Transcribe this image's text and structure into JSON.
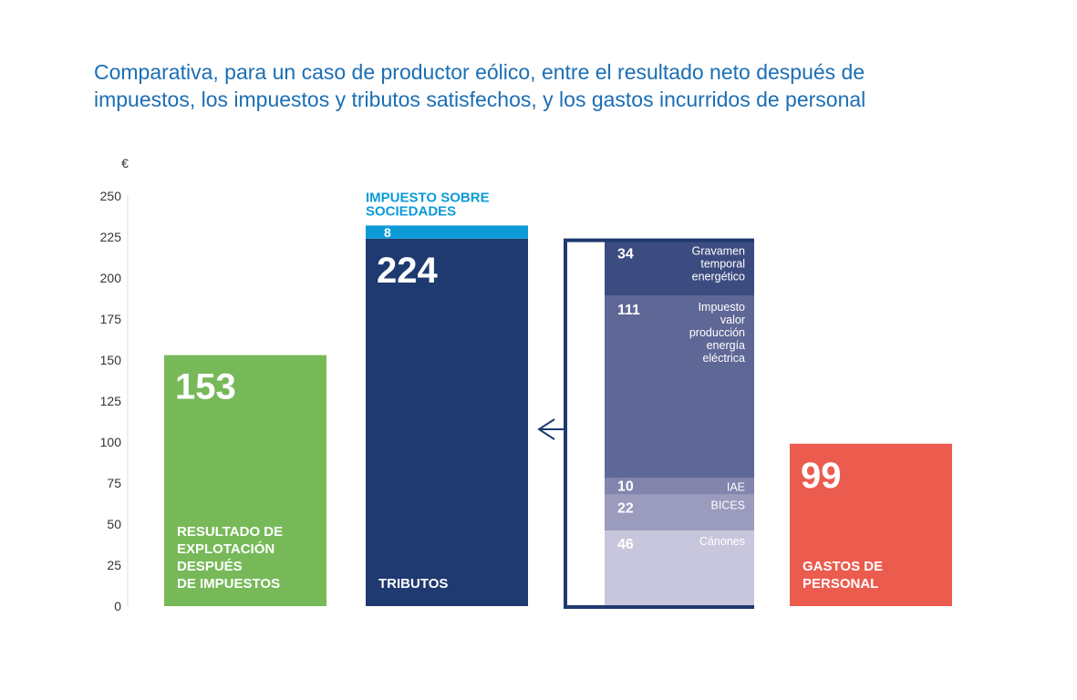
{
  "chart_data": {
    "type": "bar",
    "title": "Comparativa, para un caso de productor eólico, entre el resultado neto después de impuestos, los impuestos y tributos satisfechos, y los gastos incurridos de personal",
    "ylabel": "€",
    "ylim": [
      0,
      250
    ],
    "yticks": [
      0,
      25,
      50,
      75,
      100,
      125,
      150,
      175,
      200,
      225,
      250
    ],
    "grid": false,
    "bars": [
      {
        "label": "RESULTADO DE EXPLOTACIÓN DESPUÉS DE IMPUESTOS",
        "label_lines": [
          "RESULTADO DE",
          "EXPLOTACIÓN",
          "DESPUÉS",
          "DE IMPUESTOS"
        ],
        "value": 153,
        "color": "#77b959"
      },
      {
        "label": "TRIBUTOS",
        "label_lines": [
          "TRIBUTOS"
        ],
        "value": 224,
        "color": "#1f3a70",
        "stacked_top": {
          "label": "IMPUESTO SOBRE SOCIEDADES",
          "label_lines": [
            "IMPUESTO SOBRE",
            "SOCIEDADES"
          ],
          "value": 8,
          "color": "#0c9ad8"
        }
      },
      {
        "label": "GASTOS DE PERSONAL",
        "label_lines": [
          "GASTOS DE",
          "PERSONAL"
        ],
        "value": 99,
        "color": "#eb5c4f"
      }
    ],
    "breakdown": [
      {
        "label_lines": [
          "Gravamen",
          "temporal",
          "energético"
        ],
        "value": 34,
        "color": "#3d4c80"
      },
      {
        "label_lines": [
          "Impuesto",
          "valor",
          "producción",
          "energía",
          "eléctrica"
        ],
        "value": 111,
        "color": "#5f6796"
      },
      {
        "label_lines": [
          "IAE"
        ],
        "value": 10,
        "color": "#8385ad"
      },
      {
        "label_lines": [
          "BICES"
        ],
        "value": 22,
        "color": "#9a9bbd"
      },
      {
        "label_lines": [
          "Cánones"
        ],
        "value": 46,
        "color": "#c7c6dc"
      }
    ],
    "bracket_color": "#1f3a70"
  }
}
